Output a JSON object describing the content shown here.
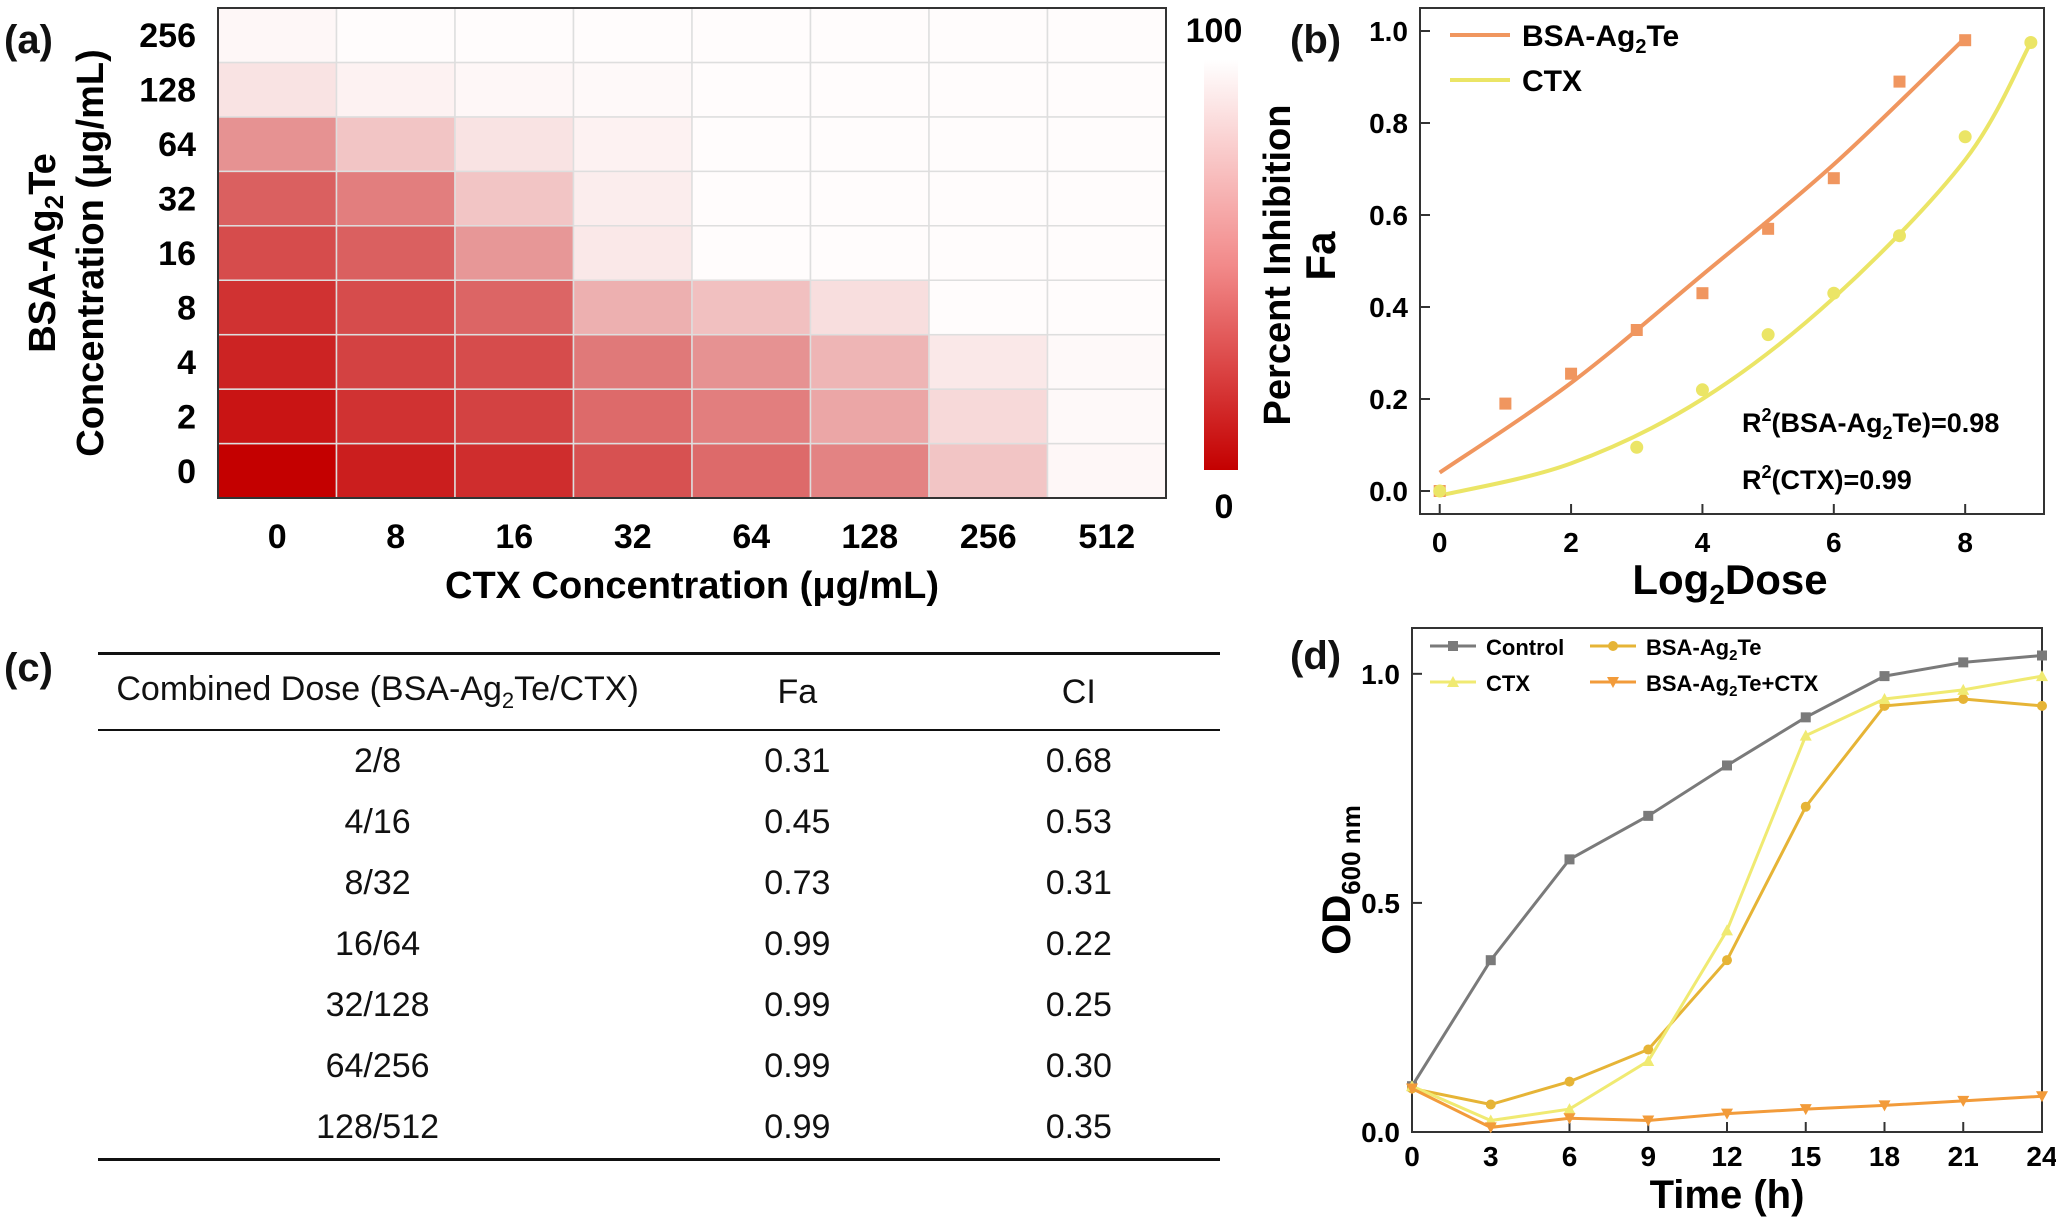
{
  "figure": {
    "panel_labels": [
      "(a)",
      "(b)",
      "(c)",
      "(d)"
    ]
  },
  "chart_data": [
    {
      "type": "heatmap",
      "panel": "(a)",
      "xlabel": "CTX Concentration (μg/mL)",
      "ylabel_line1": "BSA-Ag",
      "ylabel_sub": "2",
      "ylabel_line1_end": "Te",
      "ylabel_line2": "Concentration (μg/mL)",
      "x_categories": [
        "0",
        "8",
        "16",
        "32",
        "64",
        "128",
        "256",
        "512"
      ],
      "y_categories": [
        "0",
        "2",
        "4",
        "8",
        "16",
        "32",
        "64",
        "128",
        "256"
      ],
      "colorbar": {
        "label": "Percent Inhibition",
        "min_label": "0",
        "max_label": "100",
        "low_color": "#c40000",
        "high_color": "#ffffff"
      },
      "values": [
        [
          0,
          12,
          18,
          32,
          42,
          52,
          78,
          98
        ],
        [
          8,
          20,
          26,
          42,
          50,
          66,
          86,
          99
        ],
        [
          14,
          26,
          30,
          48,
          58,
          72,
          92,
          99
        ],
        [
          20,
          30,
          40,
          70,
          76,
          88,
          100,
          100
        ],
        [
          30,
          38,
          60,
          92,
          100,
          100,
          100,
          100
        ],
        [
          38,
          50,
          78,
          94,
          100,
          100,
          100,
          100
        ],
        [
          58,
          78,
          90,
          96,
          100,
          100,
          100,
          100
        ],
        [
          90,
          96,
          98,
          99,
          100,
          100,
          100,
          100
        ],
        [
          98,
          100,
          100,
          100,
          100,
          100,
          100,
          100
        ]
      ]
    },
    {
      "type": "scatter",
      "panel": "(b)",
      "xlabel_main": "Log",
      "xlabel_sub": "2",
      "xlabel_end": "Dose",
      "ylabel": "Fa",
      "xlim": [
        -0.3,
        9.2
      ],
      "ylim": [
        -0.05,
        1.05
      ],
      "xticks": [
        0,
        2,
        4,
        6,
        8
      ],
      "yticks": [
        0.0,
        0.2,
        0.4,
        0.6,
        0.8,
        1.0
      ],
      "series": [
        {
          "name_main": "BSA-Ag",
          "name_sub": "2",
          "name_end": "Te",
          "color": "#f0965f",
          "marker": "square",
          "x": [
            0,
            1,
            2,
            3,
            4,
            5,
            6,
            7,
            8
          ],
          "y": [
            0.0,
            0.19,
            0.255,
            0.35,
            0.43,
            0.57,
            0.68,
            0.89,
            0.98
          ],
          "fit_x": [
            0,
            2,
            4,
            6,
            8
          ],
          "fit_y": [
            0.04,
            0.235,
            0.47,
            0.71,
            0.985
          ]
        },
        {
          "name": "CTX",
          "color": "#ebe566",
          "marker": "circle",
          "x": [
            0,
            3,
            4,
            5,
            6,
            7,
            8,
            9
          ],
          "y": [
            0.0,
            0.095,
            0.22,
            0.34,
            0.43,
            0.555,
            0.77,
            0.975
          ],
          "fit_x": [
            0,
            2,
            4,
            6,
            8,
            9
          ],
          "fit_y": [
            -0.01,
            0.06,
            0.2,
            0.42,
            0.72,
            0.975
          ]
        }
      ],
      "annotations": [
        {
          "prefix": "R",
          "sup": "2",
          "mid": "(BSA-Ag",
          "sub": "2",
          "suffix": "Te)=0.98"
        },
        {
          "prefix": "R",
          "sup": "2",
          "mid": "(CTX)=0.99",
          "sub": "",
          "suffix": ""
        }
      ]
    },
    {
      "type": "table",
      "panel": "(c)",
      "header": {
        "dose_main": "Combined Dose (BSA-Ag",
        "dose_sub": "2",
        "dose_end": "Te/CTX)",
        "fa": "Fa",
        "ci": "CI"
      },
      "rows": [
        {
          "dose": "2/8",
          "fa": "0.31",
          "ci": "0.68"
        },
        {
          "dose": "4/16",
          "fa": "0.45",
          "ci": "0.53"
        },
        {
          "dose": "8/32",
          "fa": "0.73",
          "ci": "0.31"
        },
        {
          "dose": "16/64",
          "fa": "0.99",
          "ci": "0.22"
        },
        {
          "dose": "32/128",
          "fa": "0.99",
          "ci": "0.25"
        },
        {
          "dose": "64/256",
          "fa": "0.99",
          "ci": "0.30"
        },
        {
          "dose": "128/512",
          "fa": "0.99",
          "ci": "0.35"
        }
      ]
    },
    {
      "type": "line",
      "panel": "(d)",
      "xlabel": "Time (h)",
      "ylabel_main": "OD",
      "ylabel_sub": "600 nm",
      "x": [
        0,
        3,
        6,
        9,
        12,
        15,
        18,
        21,
        24
      ],
      "xlim": [
        0,
        24
      ],
      "ylim": [
        0,
        1.1
      ],
      "xticks": [
        0,
        3,
        6,
        9,
        12,
        15,
        18,
        21,
        24
      ],
      "yticks": [
        0.0,
        0.5,
        1.0
      ],
      "ytick_labels": [
        "0.0",
        "0.5",
        "1.0"
      ],
      "series": [
        {
          "name": "Control",
          "color": "#7a7a7a",
          "marker": "square",
          "values": [
            0.1,
            0.375,
            0.595,
            0.69,
            0.8,
            0.905,
            0.995,
            1.025,
            1.04
          ]
        },
        {
          "name_main": "BSA-Ag",
          "name_sub": "2",
          "name_end": "Te",
          "color": "#e6b436",
          "marker": "circle",
          "values": [
            0.095,
            0.06,
            0.11,
            0.18,
            0.375,
            0.71,
            0.93,
            0.945,
            0.93
          ]
        },
        {
          "name": "CTX",
          "color": "#f0ea72",
          "marker": "triangle-up",
          "values": [
            0.1,
            0.025,
            0.05,
            0.155,
            0.44,
            0.865,
            0.945,
            0.965,
            0.995
          ]
        },
        {
          "name_main": "BSA-Ag",
          "name_sub": "2",
          "name_end": "Te+CTX",
          "color": "#f29b3a",
          "marker": "triangle-down",
          "values": [
            0.095,
            0.01,
            0.03,
            0.025,
            0.04,
            0.05,
            0.058,
            0.068,
            0.078
          ]
        }
      ]
    }
  ]
}
